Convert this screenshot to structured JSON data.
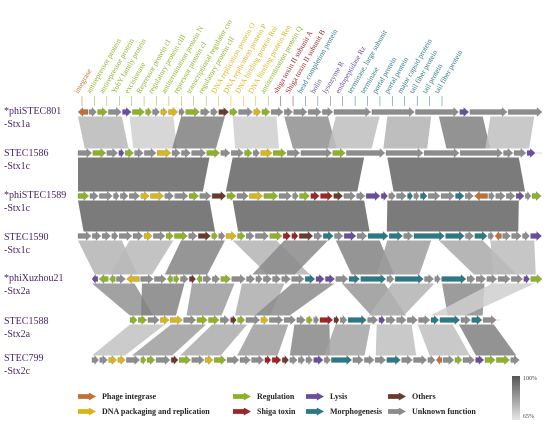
{
  "gene_labels": [
    {
      "text": "integrase",
      "color": "#c2703a",
      "cat": "integrase"
    },
    {
      "text": "antirepressor protein",
      "color": "#8fb129",
      "cat": "regulation"
    },
    {
      "text": "antirepressor protein",
      "color": "#8fb129",
      "cat": "regulation"
    },
    {
      "text": "YubY family protein",
      "color": "#8fb129",
      "cat": "regulation"
    },
    {
      "text": "excisionase",
      "color": "#8fb129",
      "cat": "regulation"
    },
    {
      "text": "Repressor protein cI",
      "color": "#8fb129",
      "cat": "regulation"
    },
    {
      "text": "regulatory protein cIII",
      "color": "#8fb129",
      "cat": "regulation"
    },
    {
      "text": "antitermination protein N",
      "color": "#8fb129",
      "cat": "regulation"
    },
    {
      "text": "repressor protein cI",
      "color": "#8fb129",
      "cat": "regulation"
    },
    {
      "text": "transcriptional regulator cro",
      "color": "#8fb129",
      "cat": "regulation"
    },
    {
      "text": "regulatory protein cII",
      "color": "#8fb129",
      "cat": "regulation"
    },
    {
      "text": "DNA replication protein O",
      "color": "#d8b51c",
      "cat": "dna"
    },
    {
      "text": "DNA replication protein P",
      "color": "#d8b51c",
      "cat": "dna"
    },
    {
      "text": "DNA binding protein Roi",
      "color": "#d8b51c",
      "cat": "dna"
    },
    {
      "text": "DNA binding protein Ren",
      "color": "#d8b51c",
      "cat": "dna"
    },
    {
      "text": "antitermination protein Q",
      "color": "#8fb129",
      "cat": "regulation"
    },
    {
      "text": "shiga toxin II subunit A",
      "color": "#9d2525",
      "cat": "shiga"
    },
    {
      "text": "Shiga toxin II subunit B",
      "color": "#9d2525",
      "cat": "shiga"
    },
    {
      "text": "head completion protein",
      "color": "#2a7a86",
      "cat": "morph"
    },
    {
      "text": "holin",
      "color": "#6a4d9c",
      "cat": "lysis"
    },
    {
      "text": "lysozyme R",
      "color": "#6a4d9c",
      "cat": "lysis"
    },
    {
      "text": "endopeptidase Rz",
      "color": "#6a4d9c",
      "cat": "lysis"
    },
    {
      "text": "terminase, large subunit",
      "color": "#2a7a86",
      "cat": "morph"
    },
    {
      "text": "terminase",
      "color": "#2a7a86",
      "cat": "morph"
    },
    {
      "text": "portal protein",
      "color": "#2a7a86",
      "cat": "morph"
    },
    {
      "text": "portal protein",
      "color": "#2a7a86",
      "cat": "morph"
    },
    {
      "text": "major capsid protein",
      "color": "#2a7a86",
      "cat": "morph"
    },
    {
      "text": "tail fiber protein",
      "color": "#2a7a86",
      "cat": "morph"
    },
    {
      "text": "tail protein",
      "color": "#2a7a86",
      "cat": "morph"
    },
    {
      "text": "tail fiber protein",
      "color": "#2a7a86",
      "cat": "morph"
    }
  ],
  "rows": [
    {
      "name": "*phiSTEC801",
      "subtype": "-Stx1a"
    },
    {
      "name": "STEC1586",
      "subtype": "-Stx1c"
    },
    {
      "name": "*phiSTEC1589",
      "subtype": "-Stx1c"
    },
    {
      "name": "STEC1590",
      "subtype": "-Stx1c"
    },
    {
      "name": "*phiXuzhou21",
      "subtype": "-Stx2a"
    },
    {
      "name": "STEC1588",
      "subtype": "-Stx2a"
    },
    {
      "name": "STEC799",
      "subtype": "-Stx2c"
    }
  ],
  "legend": [
    {
      "label": "Phage integrase",
      "color": "#c2703a",
      "icon": "orange-arrow"
    },
    {
      "label": "DNA packaging and replication",
      "color": "#d8b51c",
      "icon": "yellow-arrow"
    },
    {
      "label": "Regulation",
      "color": "#8fb129",
      "icon": "green-arrow"
    },
    {
      "label": "Shiga toxin",
      "color": "#9d2525",
      "icon": "red-arrow"
    },
    {
      "label": "Lysis",
      "color": "#6a4d9c",
      "icon": "purple-arrow"
    },
    {
      "label": "Morphogenesis",
      "color": "#2a7a86",
      "icon": "teal-arrow"
    },
    {
      "label": "Others",
      "color": "#6b3a2e",
      "icon": "brown-arrow"
    },
    {
      "label": "Unknown function",
      "color": "#8c8c8c",
      "icon": "grey-arrow"
    }
  ],
  "scale": {
    "max_label": "100%",
    "min_label": "65%",
    "max_value": 100,
    "min_value": 65
  }
}
